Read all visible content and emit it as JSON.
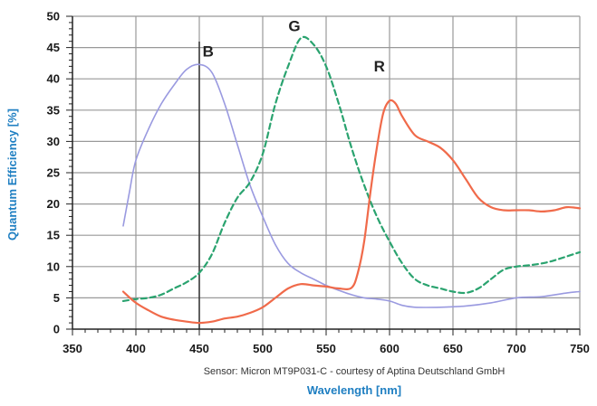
{
  "chart_data": {
    "type": "line",
    "title": "",
    "xlabel": "Wavelength [nm]",
    "ylabel": "Quantum Efficiency [%]",
    "xlim": [
      350,
      750
    ],
    "ylim": [
      0,
      50
    ],
    "x_ticks": [
      350,
      400,
      450,
      500,
      550,
      600,
      650,
      700,
      750
    ],
    "y_ticks": [
      0,
      5,
      10,
      15,
      20,
      25,
      30,
      35,
      40,
      45,
      50
    ],
    "grid": true,
    "note": "Sensor: Micron MT9P031-C - courtesy of Aptina Deutschland GmbH",
    "series": [
      {
        "name": "B",
        "color": "#9a9ae0",
        "style": "solid",
        "points": [
          [
            390,
            16.5
          ],
          [
            395,
            22
          ],
          [
            400,
            27
          ],
          [
            410,
            32
          ],
          [
            420,
            36
          ],
          [
            430,
            39
          ],
          [
            440,
            41.5
          ],
          [
            450,
            42.3
          ],
          [
            460,
            41
          ],
          [
            470,
            36
          ],
          [
            480,
            29.5
          ],
          [
            490,
            23
          ],
          [
            500,
            18
          ],
          [
            510,
            13.5
          ],
          [
            520,
            10.5
          ],
          [
            530,
            9
          ],
          [
            540,
            8
          ],
          [
            550,
            7
          ],
          [
            560,
            6.2
          ],
          [
            570,
            5.5
          ],
          [
            580,
            5
          ],
          [
            590,
            4.8
          ],
          [
            600,
            4.5
          ],
          [
            610,
            3.8
          ],
          [
            620,
            3.5
          ],
          [
            640,
            3.5
          ],
          [
            660,
            3.7
          ],
          [
            680,
            4.2
          ],
          [
            700,
            5
          ],
          [
            720,
            5.2
          ],
          [
            740,
            5.8
          ],
          [
            750,
            6
          ]
        ]
      },
      {
        "name": "G",
        "color": "#2aa36f",
        "style": "dashed",
        "points": [
          [
            390,
            4.5
          ],
          [
            400,
            4.8
          ],
          [
            410,
            5
          ],
          [
            420,
            5.5
          ],
          [
            430,
            6.5
          ],
          [
            440,
            7.5
          ],
          [
            450,
            9
          ],
          [
            460,
            12
          ],
          [
            470,
            17
          ],
          [
            480,
            21
          ],
          [
            490,
            23.5
          ],
          [
            500,
            28
          ],
          [
            510,
            36
          ],
          [
            520,
            42
          ],
          [
            530,
            46.5
          ],
          [
            540,
            45.5
          ],
          [
            550,
            42
          ],
          [
            560,
            36
          ],
          [
            570,
            29
          ],
          [
            580,
            23
          ],
          [
            590,
            18
          ],
          [
            600,
            14
          ],
          [
            610,
            10.5
          ],
          [
            620,
            8
          ],
          [
            630,
            7
          ],
          [
            640,
            6.5
          ],
          [
            650,
            6
          ],
          [
            660,
            5.8
          ],
          [
            670,
            6.5
          ],
          [
            680,
            8
          ],
          [
            690,
            9.5
          ],
          [
            700,
            10
          ],
          [
            710,
            10.2
          ],
          [
            720,
            10.5
          ],
          [
            730,
            11
          ],
          [
            750,
            12.3
          ]
        ]
      },
      {
        "name": "R",
        "color": "#f06a4a",
        "style": "solid",
        "points": [
          [
            390,
            6
          ],
          [
            400,
            4.2
          ],
          [
            410,
            3
          ],
          [
            420,
            2
          ],
          [
            430,
            1.5
          ],
          [
            440,
            1.2
          ],
          [
            450,
            1
          ],
          [
            460,
            1.2
          ],
          [
            470,
            1.7
          ],
          [
            480,
            2
          ],
          [
            490,
            2.6
          ],
          [
            500,
            3.5
          ],
          [
            510,
            5
          ],
          [
            520,
            6.5
          ],
          [
            530,
            7.2
          ],
          [
            540,
            7
          ],
          [
            550,
            6.8
          ],
          [
            560,
            6.5
          ],
          [
            570,
            6.6
          ],
          [
            575,
            9
          ],
          [
            580,
            14
          ],
          [
            585,
            22
          ],
          [
            590,
            29
          ],
          [
            595,
            34.5
          ],
          [
            600,
            36.5
          ],
          [
            605,
            36
          ],
          [
            610,
            34
          ],
          [
            620,
            31
          ],
          [
            630,
            30
          ],
          [
            640,
            29
          ],
          [
            650,
            27
          ],
          [
            660,
            24
          ],
          [
            670,
            21
          ],
          [
            680,
            19.5
          ],
          [
            690,
            19
          ],
          [
            700,
            19
          ],
          [
            710,
            19
          ],
          [
            720,
            18.8
          ],
          [
            730,
            19
          ],
          [
            740,
            19.5
          ],
          [
            750,
            19.3
          ]
        ]
      }
    ],
    "series_label_positions": [
      {
        "name": "B",
        "x": 457,
        "y": 43.6
      },
      {
        "name": "G",
        "x": 525,
        "y": 47.6
      },
      {
        "name": "R",
        "x": 592,
        "y": 41.2
      }
    ],
    "highlight_line_x": 450,
    "colors": {
      "background": "#ffffff",
      "grid": "#999999",
      "axis": "#222222",
      "axis_title": "#1f7fc2"
    }
  }
}
